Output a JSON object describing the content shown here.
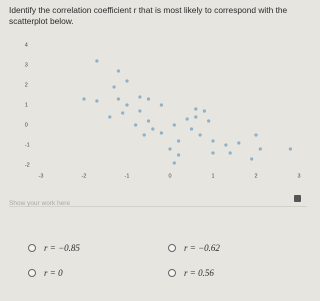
{
  "question": "Identify the correlation coefficient r that is most likely to correspond with the scatterplot below.",
  "chart_data": {
    "type": "scatter",
    "x": [
      -1.7,
      -1.2,
      -1.0,
      -1.3,
      -2.0,
      -1.7,
      -1.2,
      -1.0,
      -0.7,
      -0.5,
      -0.2,
      -1.1,
      -1.4,
      -0.5,
      -0.4,
      -0.2,
      0.1,
      0.4,
      0.6,
      0.8,
      0.9,
      0.5,
      0.7,
      0.2,
      1.0,
      1.3,
      1.6,
      2.0,
      2.1,
      1.4,
      1.9,
      1.0,
      0.2,
      0.1,
      -0.7,
      -0.6,
      2.8,
      0.0,
      0.6,
      -0.8
    ],
    "y": [
      3.2,
      2.7,
      2.2,
      1.9,
      1.3,
      1.2,
      1.3,
      1.0,
      1.4,
      1.3,
      1.0,
      0.6,
      0.4,
      0.2,
      -0.2,
      -0.4,
      0.0,
      0.3,
      0.4,
      0.7,
      0.2,
      -0.2,
      -0.5,
      -0.8,
      -0.8,
      -1.0,
      -0.9,
      -0.5,
      -1.2,
      -1.4,
      -1.7,
      -1.4,
      -1.5,
      -1.9,
      0.7,
      -0.5,
      -1.2,
      -1.2,
      0.8,
      0.0
    ],
    "color": "#8fb0c6",
    "xlim": [
      -3.4,
      3.2
    ],
    "xticks": [
      -3,
      -2,
      -1,
      0,
      1,
      2,
      3
    ],
    "ylim": [
      -2.4,
      4.3
    ],
    "yticks": [
      -2,
      -1,
      0,
      1,
      2,
      3,
      4
    ],
    "grid": false
  },
  "workspace": {
    "placeholder": "Show your work here"
  },
  "options": [
    "r = −0.85",
    "r = −0.62",
    "r = 0",
    "r = 0.56"
  ]
}
